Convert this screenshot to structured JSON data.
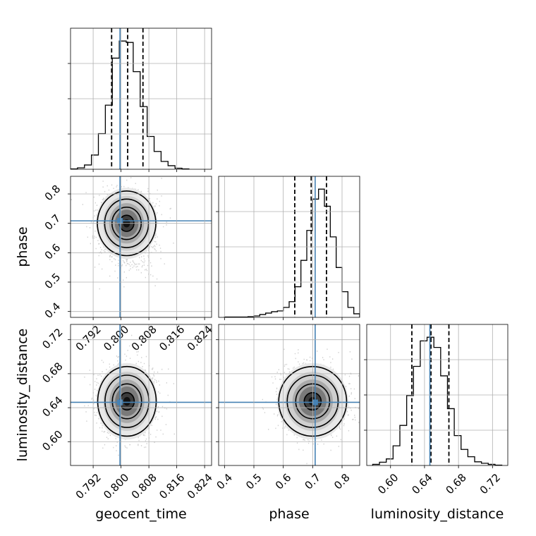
{
  "chart_data": {
    "type": "corner",
    "parameters": [
      "geocent_time",
      "phase",
      "luminosity_distance"
    ],
    "truths": {
      "geocent_time": 0.7997,
      "phase": 0.7085,
      "luminosity_distance": 0.6463
    },
    "truth_color": "#4682b4",
    "grid": true,
    "panels": [
      {
        "id": "hist_geocent_time",
        "kind": "histogram",
        "x": "geocent_time",
        "xlim": [
          0.7855,
          0.826
        ],
        "bin_edges": [
          0.7855,
          0.7875,
          0.7895,
          0.7915,
          0.7935,
          0.7955,
          0.7975,
          0.7995,
          0.8015,
          0.8035,
          0.8055,
          0.8075,
          0.8095,
          0.8115,
          0.8135,
          0.8155,
          0.8175,
          0.8195
        ],
        "counts": [
          0.5,
          2,
          6,
          20,
          50,
          90,
          156,
          180,
          178,
          137,
          88,
          46,
          25,
          11,
          5,
          1.5,
          0.5
        ],
        "quantiles": [
          0.7973,
          0.8019,
          0.8063
        ],
        "tick_labels": [
          "0.792",
          "0.800",
          "0.808",
          "0.816",
          "0.824"
        ]
      },
      {
        "id": "hist_phase",
        "kind": "histogram",
        "x": "phase",
        "xlim": [
          0.38,
          0.86
        ],
        "bin_edges": [
          0.4,
          0.42,
          0.44,
          0.46,
          0.48,
          0.5,
          0.52,
          0.54,
          0.56,
          0.58,
          0.6,
          0.62,
          0.64,
          0.66,
          0.68,
          0.7,
          0.72,
          0.74,
          0.76,
          0.78,
          0.8,
          0.82,
          0.84,
          0.86
        ],
        "counts": [
          0.5,
          0.5,
          0.5,
          0.5,
          1,
          2,
          4,
          6,
          8,
          9,
          14,
          22,
          43,
          80,
          122,
          166,
          180,
          156,
          113,
          70,
          36,
          14,
          5
        ],
        "quantiles": [
          0.639,
          0.695,
          0.747
        ],
        "tick_labels": [
          "0.4",
          "0.5",
          "0.6",
          "0.7",
          "0.8"
        ]
      },
      {
        "id": "hist_luminosity_distance",
        "kind": "histogram",
        "x": "luminosity_distance",
        "xlim": [
          0.572,
          0.738
        ],
        "bin_edges": [
          0.579,
          0.587,
          0.595,
          0.603,
          0.611,
          0.619,
          0.627,
          0.635,
          0.643,
          0.651,
          0.659,
          0.667,
          0.675,
          0.683,
          0.691,
          0.699,
          0.707,
          0.715,
          0.723,
          0.731
        ],
        "counts": [
          1.5,
          4.5,
          9,
          27,
          55,
          96,
          136,
          171,
          176,
          162,
          123,
          78,
          41,
          22,
          12,
          5,
          3,
          1.5,
          0.5
        ],
        "quantiles": [
          0.6251,
          0.6476,
          0.6687
        ],
        "tick_labels": [
          "0.60",
          "0.64",
          "0.68",
          "0.72"
        ]
      },
      {
        "id": "scatter_geocent_time_phase",
        "kind": "2d_density",
        "x": "geocent_time",
        "y": "phase",
        "xlim": [
          0.7855,
          0.826
        ],
        "ylim": [
          0.38,
          0.86
        ],
        "mean": [
          0.8016,
          0.7
        ],
        "sd": [
          0.004,
          0.055
        ],
        "x_tick_labels": [
          "0.792",
          "0.800",
          "0.808",
          "0.816",
          "0.824"
        ],
        "y_tick_labels": [
          "0.4",
          "0.5",
          "0.6",
          "0.7",
          "0.8"
        ]
      },
      {
        "id": "scatter_geocent_time_luminosity_distance",
        "kind": "2d_density",
        "x": "geocent_time",
        "y": "luminosity_distance",
        "xlim": [
          0.7855,
          0.826
        ],
        "ylim": [
          0.572,
          0.738
        ],
        "mean": [
          0.8017,
          0.6475
        ],
        "sd": [
          0.004,
          0.0205
        ],
        "x_tick_labels": [
          "0.792",
          "0.800",
          "0.808",
          "0.816",
          "0.824"
        ],
        "y_tick_labels": [
          "0.60",
          "0.64",
          "0.68",
          "0.72"
        ]
      },
      {
        "id": "scatter_phase_luminosity_distance",
        "kind": "2d_density",
        "x": "phase",
        "y": "luminosity_distance",
        "xlim": [
          0.38,
          0.86
        ],
        "ylim": [
          0.572,
          0.738
        ],
        "mean": [
          0.7,
          0.6475
        ],
        "sd": [
          0.055,
          0.0205
        ],
        "x_tick_labels": [
          "0.4",
          "0.5",
          "0.6",
          "0.7",
          "0.8"
        ],
        "y_tick_labels": [
          "0.60",
          "0.64",
          "0.68",
          "0.72"
        ]
      }
    ],
    "xlabels": [
      "geocent_time",
      "phase",
      "luminosity_distance"
    ],
    "ylabels": [
      "phase",
      "luminosity_distance"
    ]
  }
}
